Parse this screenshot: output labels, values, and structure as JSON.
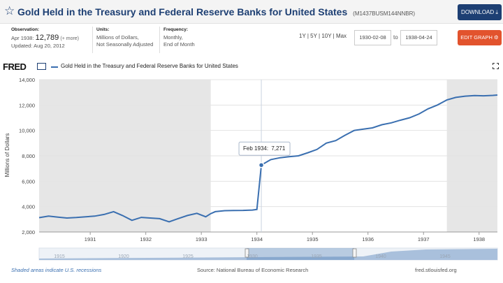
{
  "header": {
    "title": "Gold Held in the Treasury and Federal Reserve Banks for United States",
    "series_id": "(M1437BUSM144NNBR)",
    "download_label": "DOWNLOAD"
  },
  "meta": {
    "observation_label": "Observation:",
    "observation_date": "Apr 1938:",
    "observation_value": "12,789",
    "observation_more": "(+ more)",
    "updated": "Updated: Aug 20, 2012",
    "units_label": "Units:",
    "units_line1": "Millions of Dollars,",
    "units_line2": "Not Seasonally Adjusted",
    "frequency_label": "Frequency:",
    "frequency_line1": "Monthly,",
    "frequency_line2": "End of Month"
  },
  "controls": {
    "ranges": "1Y | 5Y | 10Y | Max",
    "start_date": "1930-02-08",
    "to_label": "to",
    "end_date": "1938-04-24",
    "edit_label": "EDIT GRAPH"
  },
  "legend": {
    "logo": "FRED",
    "series_name": "Gold Held in the Treasury and Federal Reserve Banks for United States"
  },
  "chart_data": {
    "type": "line",
    "ylabel": "Millions of Dollars",
    "ylim": [
      2000,
      14000
    ],
    "yticks": [
      2000,
      4000,
      6000,
      8000,
      10000,
      12000,
      14000
    ],
    "ytick_labels": [
      "2,000",
      "4,000",
      "6,000",
      "8,000",
      "10,000",
      "12,000",
      "14,000"
    ],
    "xlim": [
      1930.08,
      1938.33
    ],
    "xticks": [
      1931,
      1932,
      1933,
      1934,
      1935,
      1936,
      1937,
      1938
    ],
    "xtick_labels": [
      "1931",
      "1932",
      "1933",
      "1934",
      "1935",
      "1936",
      "1937",
      "1938"
    ],
    "grid": true,
    "recessions": [
      [
        1930.08,
        1933.17
      ],
      [
        1937.42,
        1938.33
      ]
    ],
    "tooltip": {
      "x": 1934.08,
      "label": "Feb 1934:",
      "value": "7,271"
    },
    "series": [
      {
        "name": "Gold Held in the Treasury and Federal Reserve Banks for United States",
        "color": "#3a6fb0",
        "x": [
          1930.08,
          1930.25,
          1930.42,
          1930.58,
          1930.75,
          1930.92,
          1931.08,
          1931.25,
          1931.42,
          1931.58,
          1931.75,
          1931.92,
          1932.08,
          1932.25,
          1932.42,
          1932.58,
          1932.75,
          1932.92,
          1933.08,
          1933.17,
          1933.25,
          1933.42,
          1933.58,
          1933.75,
          1933.92,
          1934.0,
          1934.08,
          1934.25,
          1934.42,
          1934.58,
          1934.75,
          1934.92,
          1935.08,
          1935.25,
          1935.42,
          1935.58,
          1935.75,
          1935.92,
          1936.08,
          1936.25,
          1936.42,
          1936.58,
          1936.75,
          1936.92,
          1937.08,
          1937.25,
          1937.42,
          1937.58,
          1937.75,
          1937.92,
          1938.08,
          1938.25,
          1938.33
        ],
        "values": [
          3130,
          3250,
          3170,
          3100,
          3140,
          3200,
          3250,
          3380,
          3600,
          3300,
          2920,
          3150,
          3100,
          3050,
          2800,
          3050,
          3300,
          3470,
          3200,
          3450,
          3600,
          3680,
          3690,
          3700,
          3730,
          3780,
          7271,
          7700,
          7850,
          7930,
          8000,
          8250,
          8500,
          9000,
          9200,
          9600,
          10000,
          10100,
          10200,
          10450,
          10600,
          10800,
          11000,
          11300,
          11700,
          12000,
          12400,
          12600,
          12700,
          12750,
          12730,
          12760,
          12789
        ]
      }
    ]
  },
  "navigator": {
    "tick_labels": [
      "1915",
      "1920",
      "1925",
      "1930",
      "1935",
      "1940",
      "1945"
    ]
  },
  "footer": {
    "recession_note": "Shaded areas indicate U.S. recessions",
    "source": "Source: National Bureau of Economic Research",
    "site": "fred.stlouisfed.org"
  },
  "colors": {
    "brand": "#1d3f73",
    "edit": "#e2532d",
    "line": "#3a6fb0",
    "recession": "#e6e6e6"
  }
}
